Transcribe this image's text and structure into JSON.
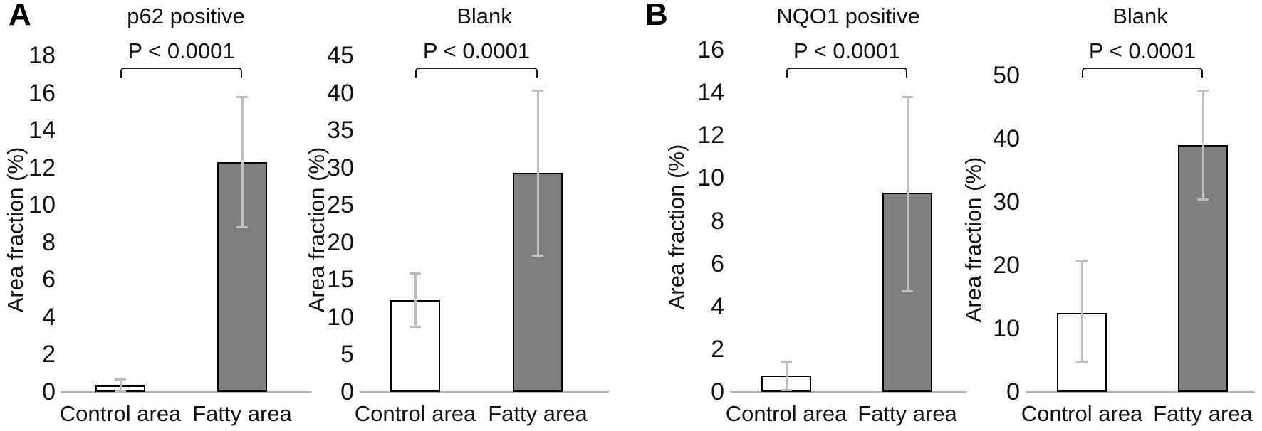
{
  "panels": [
    {
      "label": "A"
    },
    {
      "label": "B"
    }
  ],
  "colors": {
    "bar_gray": "#7f7f7f",
    "bar_white": "#ffffff",
    "bar_border": "#000000",
    "error_bar": "#bfbfbf",
    "axis_line": "#b3b3b3",
    "text": "#111111"
  },
  "chart_data": [
    {
      "type": "bar",
      "title": "p62 positive",
      "ylabel": "Area fraction (%)",
      "ylim": [
        0,
        18
      ],
      "ytick_step": 2,
      "grid": false,
      "significance_label": "P < 0.0001",
      "categories": [
        "Control area",
        "Fatty area"
      ],
      "series": [
        {
          "name": "Control area",
          "value": 0.35,
          "error_low": 0.0,
          "error_high": 0.7,
          "fill": "white"
        },
        {
          "name": "Fatty area",
          "value": 12.3,
          "error_low": 8.8,
          "error_high": 15.8,
          "fill": "gray"
        }
      ]
    },
    {
      "type": "bar",
      "title": "Blank",
      "ylabel": "Area fraction (%)",
      "ylim": [
        0,
        45
      ],
      "ytick_step": 5,
      "grid": false,
      "significance_label": "P < 0.0001",
      "categories": [
        "Control area",
        "Fatty area"
      ],
      "series": [
        {
          "name": "Control area",
          "value": 12.3,
          "error_low": 8.7,
          "error_high": 15.9,
          "fill": "white"
        },
        {
          "name": "Fatty area",
          "value": 29.3,
          "error_low": 18.2,
          "error_high": 40.3,
          "fill": "gray"
        }
      ]
    },
    {
      "type": "bar",
      "title": "NQO1 positive",
      "ylabel": "Area fraction (%)",
      "ylim": [
        0,
        16
      ],
      "ytick_step": 2,
      "grid": false,
      "significance_label": "P < 0.0001",
      "categories": [
        "Control area",
        "Fatty area"
      ],
      "series": [
        {
          "name": "Control area",
          "value": 0.75,
          "error_low": 0.05,
          "error_high": 1.4,
          "fill": "white"
        },
        {
          "name": "Fatty area",
          "value": 9.3,
          "error_low": 4.7,
          "error_high": 13.8,
          "fill": "gray"
        }
      ]
    },
    {
      "type": "bar",
      "title": "Blank",
      "ylabel": "Area fraction (%)",
      "ylim": [
        0,
        50
      ],
      "ytick_step": 10,
      "grid": false,
      "significance_label": "P < 0.0001",
      "categories": [
        "Control area",
        "Fatty area"
      ],
      "series": [
        {
          "name": "Control area",
          "value": 12.5,
          "error_low": 4.6,
          "error_high": 20.8,
          "fill": "white"
        },
        {
          "name": "Fatty area",
          "value": 39.0,
          "error_low": 30.3,
          "error_high": 47.6,
          "fill": "gray"
        }
      ]
    }
  ]
}
